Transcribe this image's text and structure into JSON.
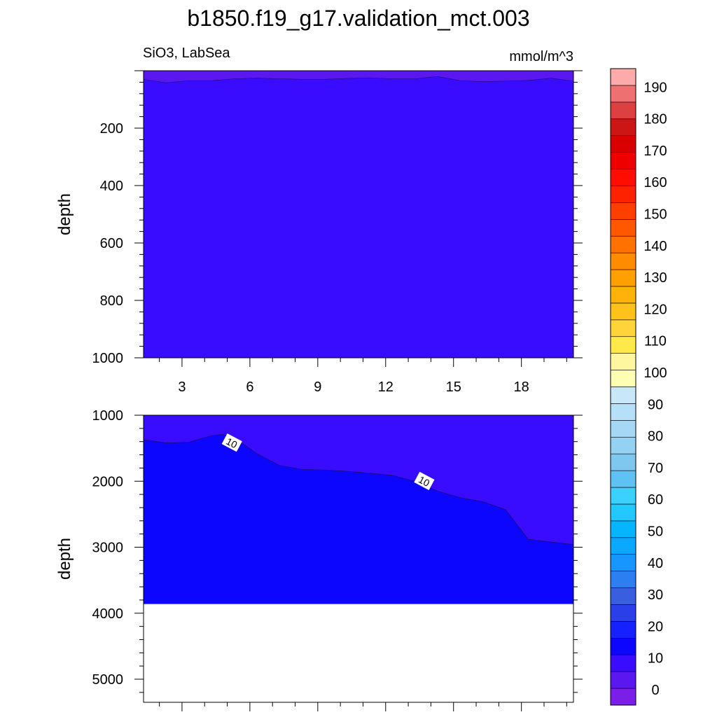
{
  "title": "b1850.f19_g17.validation_mct.003",
  "chart_data": [
    {
      "type": "contour",
      "panel": "top",
      "left_label": "SiO3, LabSea",
      "right_label": "mmol/m^3",
      "ylabel": "depth",
      "xlim": [
        1.3,
        20.3
      ],
      "ylim": [
        1000,
        0
      ],
      "xticks": [
        3,
        6,
        9,
        12,
        15,
        18
      ],
      "yticks": [
        200,
        400,
        600,
        800,
        1000
      ],
      "fill_color": "#3a0cff",
      "surface_color": "#5a17ef",
      "surface_boundary": {
        "x": [
          1.3,
          2.3,
          3.3,
          4.3,
          5.3,
          6.3,
          7.3,
          8.3,
          9.3,
          10.3,
          11.3,
          12.3,
          13.3,
          14.3,
          15.3,
          16.3,
          17.3,
          18.3,
          19.3,
          20.3
        ],
        "depth": [
          30,
          42,
          35,
          35,
          28,
          26,
          28,
          30,
          30,
          27,
          25,
          28,
          28,
          20,
          35,
          38,
          36,
          34,
          26,
          36
        ]
      }
    },
    {
      "type": "contour",
      "panel": "bottom",
      "ylabel": "depth",
      "xlim": [
        1.3,
        20.3
      ],
      "ylim": [
        5350,
        1000
      ],
      "yticks": [
        1000,
        2000,
        3000,
        4000,
        5000
      ],
      "upper_color": "#3a0cff",
      "lower_color": "#0d06ff",
      "ocean_bottom_depth": 3860,
      "contour_10": {
        "x": [
          1.3,
          2.3,
          3.3,
          4.3,
          4.8,
          5.3,
          6.3,
          7.3,
          8.3,
          9.3,
          10.3,
          11.3,
          12.3,
          13.3,
          14.3,
          15.3,
          16.3,
          17.3,
          18.3,
          19.3,
          20.3
        ],
        "depth": [
          1370,
          1420,
          1410,
          1310,
          1290,
          1340,
          1580,
          1760,
          1820,
          1830,
          1850,
          1880,
          1910,
          2000,
          2150,
          2250,
          2310,
          2430,
          2880,
          2920,
          2960
        ]
      },
      "contour_labels": [
        {
          "text": "10",
          "x": 5.2,
          "depth": 1420
        },
        {
          "text": "10",
          "x": 13.7,
          "depth": 2000
        }
      ]
    }
  ],
  "colorbar": {
    "labels": [
      "0",
      "10",
      "20",
      "30",
      "40",
      "50",
      "60",
      "70",
      "80",
      "90",
      "100",
      "110",
      "120",
      "130",
      "140",
      "150",
      "160",
      "170",
      "180",
      "190"
    ],
    "colors": [
      "#7b1fe8",
      "#5a17ef",
      "#3a0cff",
      "#0d06ff",
      "#1521ff",
      "#2a3ee9",
      "#3a5ee0",
      "#2b7ff0",
      "#1796ff",
      "#0aa8ff",
      "#06b5ff",
      "#22c8ff",
      "#3cd0ff",
      "#5ec3f3",
      "#7ec8f0",
      "#95d1f2",
      "#a6d8f5",
      "#b6e0f7",
      "#c8e8f8",
      "#ffffb3",
      "#fff7a0",
      "#ffe84a",
      "#ffd43a",
      "#ffc21a",
      "#ffb30a",
      "#ffa000",
      "#ff8b00",
      "#ff7200",
      "#ff5800",
      "#ff3f00",
      "#ff2200",
      "#ff0d00",
      "#ee0000",
      "#d80000",
      "#cc1515",
      "#dd4040",
      "#ef7070",
      "#fcaaaa"
    ]
  }
}
